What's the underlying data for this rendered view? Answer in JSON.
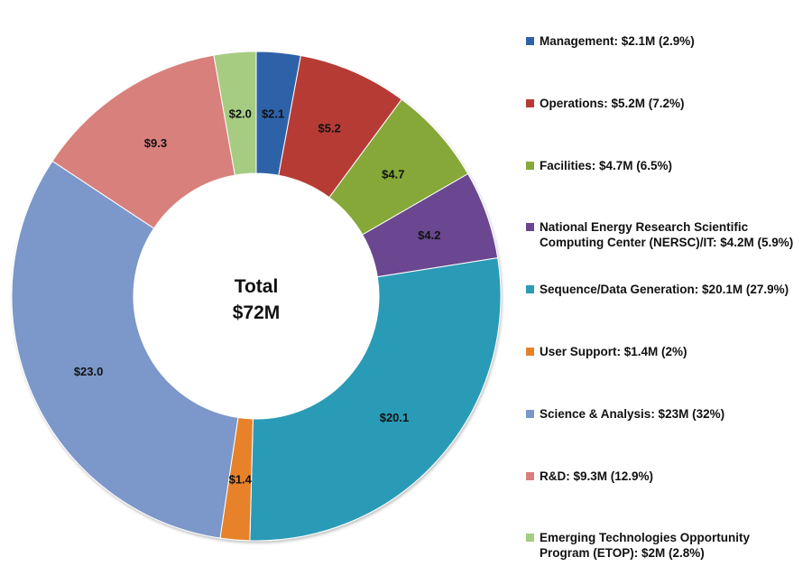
{
  "chart_data": {
    "type": "pie",
    "style": "donut",
    "center_label": [
      "Total",
      "$72M"
    ],
    "slices": [
      {
        "label": "Management: $2.1M (2.9%)",
        "value": 2.1,
        "data_label": "$2.1",
        "color": "#2e62a8"
      },
      {
        "label": "Operations: $5.2M (7.2%)",
        "value": 5.2,
        "data_label": "$5.2",
        "color": "#b73a36"
      },
      {
        "label": "Facilities: $4.7M (6.5%)",
        "value": 4.7,
        "data_label": "$4.7",
        "color": "#86a838"
      },
      {
        "label": "National Energy Research Scientific\nComputing Center (NERSC)/IT: $4.2M (5.9%)",
        "value": 4.2,
        "data_label": "$4.2",
        "color": "#6a4690"
      },
      {
        "label": "Sequence/Data Generation: $20.1M (27.9%)",
        "value": 20.1,
        "data_label": "$20.1",
        "color": "#2c9bb6"
      },
      {
        "label": "User Support: $1.4M (2%)",
        "value": 1.4,
        "data_label": "$1.4",
        "color": "#e7822c"
      },
      {
        "label": "Science & Analysis: $23M (32%)",
        "value": 23.0,
        "data_label": "$23.0",
        "color": "#7b97c9"
      },
      {
        "label": "R&D: $9.3M (12.9%)",
        "value": 9.3,
        "data_label": "$9.3",
        "color": "#d8807c"
      },
      {
        "label": "Emerging Technologies Opportunity\nProgram (ETOP): $2M (2.8%)",
        "value": 2.0,
        "data_label": "$2.0",
        "color": "#a6cc82"
      }
    ],
    "legend_position": "right"
  }
}
